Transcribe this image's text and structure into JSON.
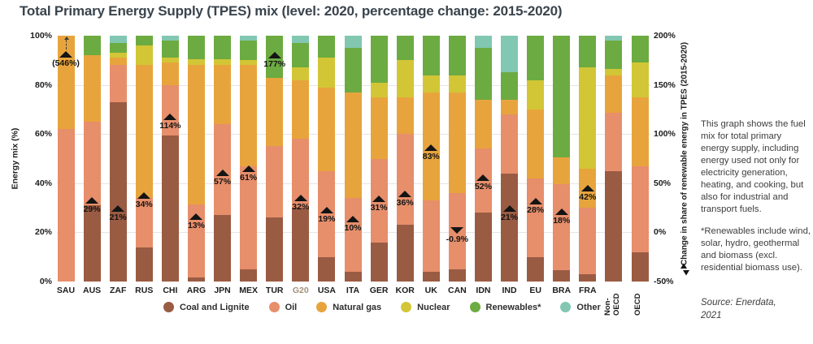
{
  "title": "Total Primary Energy Supply (TPES) mix (level: 2020, percentage change: 2015-2020)",
  "left_axis": {
    "title": "Energy mix (%)",
    "ticks": [
      100,
      80,
      60,
      40,
      20,
      0
    ],
    "tick_suffix": "%"
  },
  "right_axis": {
    "title": "Change in share of renewable energy in TPES (2015-2020)",
    "ticks": [
      200,
      150,
      100,
      50,
      0,
      -50
    ],
    "tick_suffix": "%",
    "arrow_icon": "up-down-arrows-icon"
  },
  "chart_data": {
    "type": "bar",
    "stacked": true,
    "grid": true,
    "gridlines_left_values": [
      20,
      40,
      60,
      80
    ],
    "ylim_left": [
      0,
      100
    ],
    "ylim_right": [
      -50,
      200
    ],
    "series": [
      {
        "key": "coal",
        "label": "Coal and Lignite",
        "color": "#9a5b43"
      },
      {
        "key": "oil",
        "label": "Oil",
        "color": "#e78e6b"
      },
      {
        "key": "gas",
        "label": "Natural gas",
        "color": "#e8a43c"
      },
      {
        "key": "nuclear",
        "label": "Nuclear",
        "color": "#d2c636"
      },
      {
        "key": "renewables",
        "label": "Renewables*",
        "color": "#6cab41"
      },
      {
        "key": "other",
        "label": "Other",
        "color": "#82c7b1"
      }
    ],
    "categories": [
      {
        "code": "SAU"
      },
      {
        "code": "AUS"
      },
      {
        "code": "ZAF"
      },
      {
        "code": "RUS"
      },
      {
        "code": "CHI"
      },
      {
        "code": "ARG"
      },
      {
        "code": "JPN"
      },
      {
        "code": "MEX"
      },
      {
        "code": "TUR"
      },
      {
        "code": "G20",
        "label_color": "#a09179"
      },
      {
        "code": "USA"
      },
      {
        "code": "ITA"
      },
      {
        "code": "GER"
      },
      {
        "code": "KOR"
      },
      {
        "code": "UK"
      },
      {
        "code": "CAN"
      },
      {
        "code": "IDN"
      },
      {
        "code": "IND"
      },
      {
        "code": "EU"
      },
      {
        "code": "BRA"
      },
      {
        "code": "FRA"
      },
      {
        "code": "Non-OECD",
        "rotated": true,
        "lines": [
          "Non-",
          "OECD"
        ]
      },
      {
        "code": "OECD",
        "rotated": true,
        "lines": [
          "OECD"
        ]
      }
    ],
    "values": {
      "SAU": [
        0,
        62,
        38,
        0,
        0,
        0
      ],
      "AUS": [
        31,
        34,
        27,
        0,
        8,
        0
      ],
      "ZAF": [
        73,
        15,
        3,
        2,
        4,
        3
      ],
      "RUS": [
        14,
        20,
        54,
        8,
        4,
        0
      ],
      "CHI": [
        59.5,
        20.5,
        9,
        2,
        7,
        2
      ],
      "ARG": [
        1.5,
        30,
        56.5,
        2.5,
        9.5,
        0
      ],
      "JPN": [
        27,
        37,
        24,
        2.5,
        9.5,
        0
      ],
      "MEX": [
        5,
        42,
        41,
        2,
        8,
        2
      ],
      "TUR": [
        26,
        29,
        28,
        0,
        17,
        0
      ],
      "G20": [
        30,
        28,
        24,
        5,
        10,
        3
      ],
      "USA": [
        10,
        35,
        34,
        12,
        9,
        0
      ],
      "ITA": [
        4,
        30,
        43,
        0,
        18,
        5
      ],
      "GER": [
        16,
        34,
        25,
        6,
        19,
        0
      ],
      "KOR": [
        23,
        37,
        15,
        15,
        10,
        0
      ],
      "UK": [
        4,
        29,
        44,
        7,
        16,
        0
      ],
      "CAN": [
        5,
        31,
        41,
        7,
        16,
        0
      ],
      "IDN": [
        28,
        26,
        20,
        0,
        21,
        5
      ],
      "IND": [
        44,
        24,
        6,
        0,
        11,
        15
      ],
      "EU": [
        10,
        32,
        28,
        12,
        18,
        0
      ],
      "BRA": [
        4.5,
        35,
        11,
        0,
        49.5,
        0
      ],
      "FRA": [
        3,
        27,
        16,
        41,
        13,
        0
      ],
      "Non-OECD": [
        45,
        23.5,
        15.5,
        2.5,
        11.5,
        2
      ],
      "OECD": [
        12,
        35,
        28,
        14,
        11,
        0
      ]
    },
    "annotations": {
      "SAU": {
        "label": "(546%)",
        "value": 546,
        "direction": "up",
        "offscale": true,
        "display_pos": 91
      },
      "AUS": {
        "label": "29%",
        "value": 29,
        "direction": "up"
      },
      "ZAF": {
        "label": "21%",
        "value": 21,
        "direction": "up"
      },
      "RUS": {
        "label": "34%",
        "value": 34,
        "direction": "up"
      },
      "CHI": {
        "label": "114%",
        "value": 114,
        "direction": "up"
      },
      "ARG": {
        "label": "13%",
        "value": 13,
        "direction": "up"
      },
      "JPN": {
        "label": "57%",
        "value": 57,
        "direction": "up"
      },
      "MEX": {
        "label": "61%",
        "value": 61,
        "direction": "up"
      },
      "TUR": {
        "label": "177%",
        "value": 177,
        "direction": "up"
      },
      "G20": {
        "label": "32%",
        "value": 32,
        "direction": "up"
      },
      "USA": {
        "label": "19%",
        "value": 19,
        "direction": "up"
      },
      "ITA": {
        "label": "10%",
        "value": 10,
        "direction": "up"
      },
      "GER": {
        "label": "31%",
        "value": 31,
        "direction": "up"
      },
      "KOR": {
        "label": "36%",
        "value": 36,
        "direction": "up"
      },
      "UK": {
        "label": "83%",
        "value": 83,
        "direction": "up"
      },
      "CAN": {
        "label": "-0.9%",
        "value": -0.9,
        "direction": "down"
      },
      "IDN": {
        "label": "52%",
        "value": 52,
        "direction": "up"
      },
      "IND": {
        "label": "21%",
        "value": 21,
        "direction": "up"
      },
      "EU": {
        "label": "28%",
        "value": 28,
        "direction": "up"
      },
      "BRA": {
        "label": "18%",
        "value": 18,
        "direction": "up"
      },
      "FRA": {
        "label": "42%",
        "value": 42,
        "direction": "up"
      }
    }
  },
  "side_text": {
    "para1": "This graph shows the fuel mix for total primary energy supply, including energy used not only for electricity generation, heating, and cooking, but also for industrial and transport fuels.",
    "para2": "*Renewables include wind, solar, hydro, geothermal and biomass (excl. residential biomass use)."
  },
  "source": {
    "line1": "Source: Enerdata,",
    "line2": "2021"
  }
}
